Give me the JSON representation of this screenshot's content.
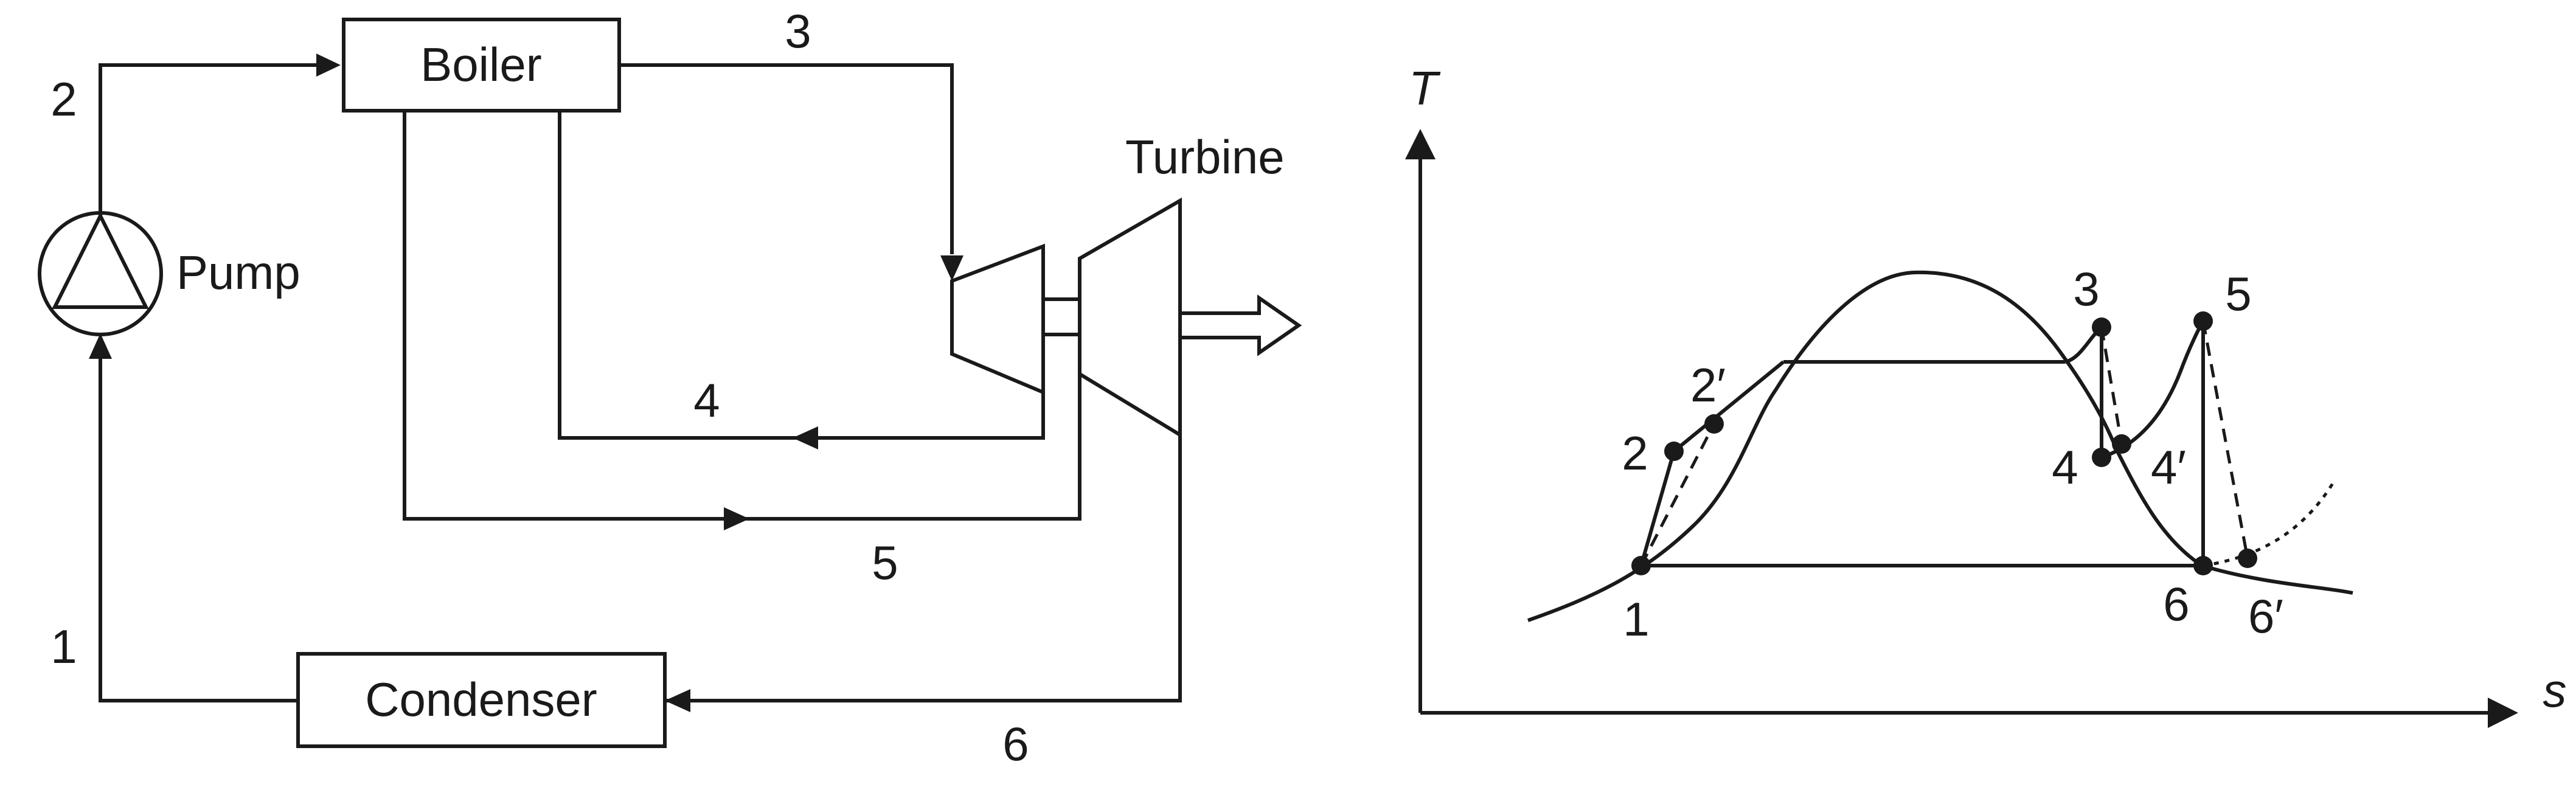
{
  "schematic": {
    "boiler": "Boiler",
    "pump": "Pump",
    "turbine": "Turbine",
    "condenser": "Condenser",
    "streams": [
      "1",
      "2",
      "3",
      "4",
      "5",
      "6"
    ]
  },
  "ts_diagram": {
    "y_axis": "T",
    "x_axis": "s",
    "states": {
      "p1": "1",
      "p2": "2",
      "p2p": "2′",
      "p3": "3",
      "p4": "4",
      "p4p": "4′",
      "p5": "5",
      "p6": "6",
      "p6p": "6′"
    }
  }
}
